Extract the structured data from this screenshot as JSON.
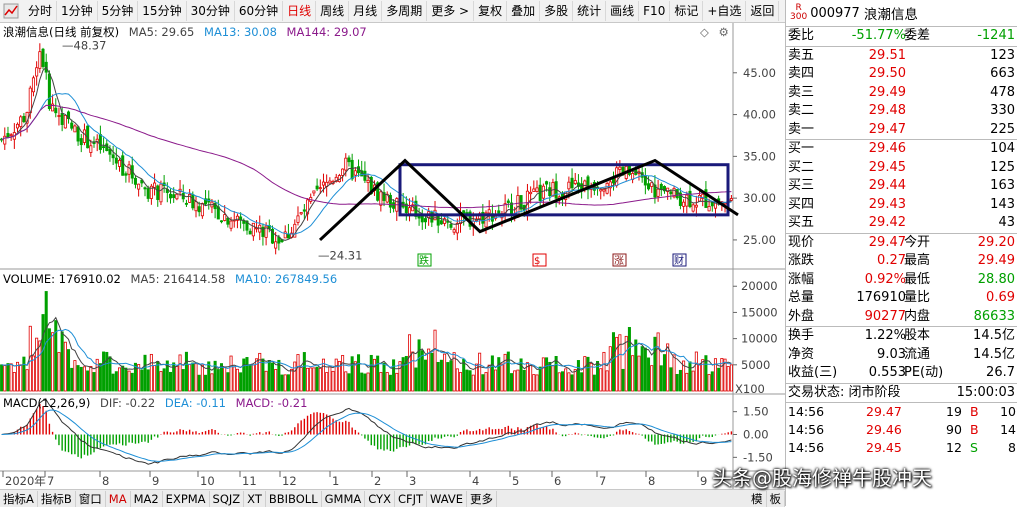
{
  "toolbar": {
    "items": [
      "分时",
      "1分钟",
      "5分钟",
      "15分钟",
      "30分钟",
      "60分钟",
      "日线",
      "周线",
      "月线",
      "多周期",
      "更多 >",
      "复权",
      "叠加",
      "多股",
      "统计",
      "画线",
      "F10",
      "标记",
      "+自选",
      "返回"
    ],
    "active": "日线"
  },
  "price_panel": {
    "title": "浪潮信息(日线 前复权)",
    "ma5_label": "MA5: 29.65",
    "ma13_label": "MA13: 30.08",
    "ma144_label": "MA144: 29.07",
    "high_marker": "48.37",
    "low_marker": "24.31",
    "y_ticks": [
      "45.00",
      "40.00",
      "35.00",
      "30.00",
      "25.00"
    ],
    "event_labels": [
      "跌",
      "$",
      "涨",
      "财"
    ],
    "colors": {
      "ma5": "#444444",
      "ma13": "#1e8fd6",
      "ma144": "#8b1a8b",
      "box": "#1a1a7a",
      "up": "#e00000",
      "down": "#00a000"
    }
  },
  "volume_panel": {
    "volume_label": "VOLUME: 176910.02",
    "ma5_label": "MA5: 216414.58",
    "ma10_label": "MA10: 267849.56",
    "y_ticks": [
      "20000",
      "15000",
      "10000",
      "5000"
    ],
    "unit": "X100"
  },
  "macd_panel": {
    "macd_label": "MACD(12,26,9)",
    "dif_label": "DIF: -0.22",
    "dea_label": "DEA: -0.11",
    "macd_value_label": "MACD: -0.21",
    "y_ticks": [
      "1.50",
      "0.00",
      "-1.50"
    ]
  },
  "x_axis": {
    "labels": [
      "2020年",
      "7",
      "8",
      "9",
      "10",
      "11",
      "12",
      "1",
      "2",
      "3",
      "4",
      "5",
      "6",
      "7",
      "8",
      "9"
    ]
  },
  "bottombar": {
    "items": [
      "指标A",
      "指标B",
      "窗口",
      "MA",
      "MA2",
      "EXPMA",
      "SQJZ",
      "XT",
      "BBIBOLL",
      "GMMA",
      "CYX",
      "CFJT",
      "WAVE",
      "更多"
    ],
    "active": "MA",
    "right_items": [
      "模",
      "板"
    ]
  },
  "quote": {
    "badge_top": "R",
    "badge_bottom": "300",
    "code": "000977",
    "name": "浪潮信息",
    "weibi_label": "委比",
    "weibi": "-51.77%",
    "weicha_label": "委差",
    "weicha": "-1241",
    "asks": [
      {
        "label": "卖五",
        "price": "29.51",
        "vol": "123"
      },
      {
        "label": "卖四",
        "price": "29.50",
        "vol": "663"
      },
      {
        "label": "卖三",
        "price": "29.49",
        "vol": "478"
      },
      {
        "label": "卖二",
        "price": "29.48",
        "vol": "330"
      },
      {
        "label": "卖一",
        "price": "29.47",
        "vol": "225"
      }
    ],
    "bids": [
      {
        "label": "买一",
        "price": "29.46",
        "vol": "104"
      },
      {
        "label": "买二",
        "price": "29.45",
        "vol": "125"
      },
      {
        "label": "买三",
        "price": "29.44",
        "vol": "163"
      },
      {
        "label": "买四",
        "price": "29.43",
        "vol": "143"
      },
      {
        "label": "买五",
        "price": "29.42",
        "vol": "43"
      }
    ],
    "stats": [
      {
        "l1": "现价",
        "v1": "29.47",
        "l2": "今开",
        "v2": "29.20",
        "c1": "red",
        "c2": "red"
      },
      {
        "l1": "涨跌",
        "v1": "0.27",
        "l2": "最高",
        "v2": "29.49",
        "c1": "red",
        "c2": "red"
      },
      {
        "l1": "涨幅",
        "v1": "0.92%",
        "l2": "最低",
        "v2": "28.80",
        "c1": "red",
        "c2": "green"
      },
      {
        "l1": "总量",
        "v1": "176910",
        "l2": "量比",
        "v2": "0.69",
        "c1": "",
        "c2": "red"
      },
      {
        "l1": "外盘",
        "v1": "90277",
        "l2": "内盘",
        "v2": "86633",
        "c1": "red",
        "c2": "green"
      }
    ],
    "stats2": [
      {
        "l1": "换手",
        "v1": "1.22%",
        "l2": "股本",
        "v2": "14.5亿"
      },
      {
        "l1": "净资",
        "v1": "9.03",
        "l2": "流通",
        "v2": "14.5亿"
      },
      {
        "l1": "收益(三)",
        "v1": "0.553",
        "l2": "PE(动)",
        "v2": "26.7"
      }
    ],
    "trade_status_label": "交易状态: 闭市阶段",
    "trade_status_time": "15:00:03",
    "trades": [
      {
        "time": "14:56",
        "price": "29.47",
        "vol": "19",
        "bs": "B",
        "num": "10"
      },
      {
        "time": "14:56",
        "price": "29.46",
        "vol": "90",
        "bs": "B",
        "num": "14"
      },
      {
        "time": "14:56",
        "price": "29.45",
        "vol": "12",
        "bs": "S",
        "num": "8"
      }
    ]
  },
  "watermark": "头条@股海修禅牛股冲天"
}
